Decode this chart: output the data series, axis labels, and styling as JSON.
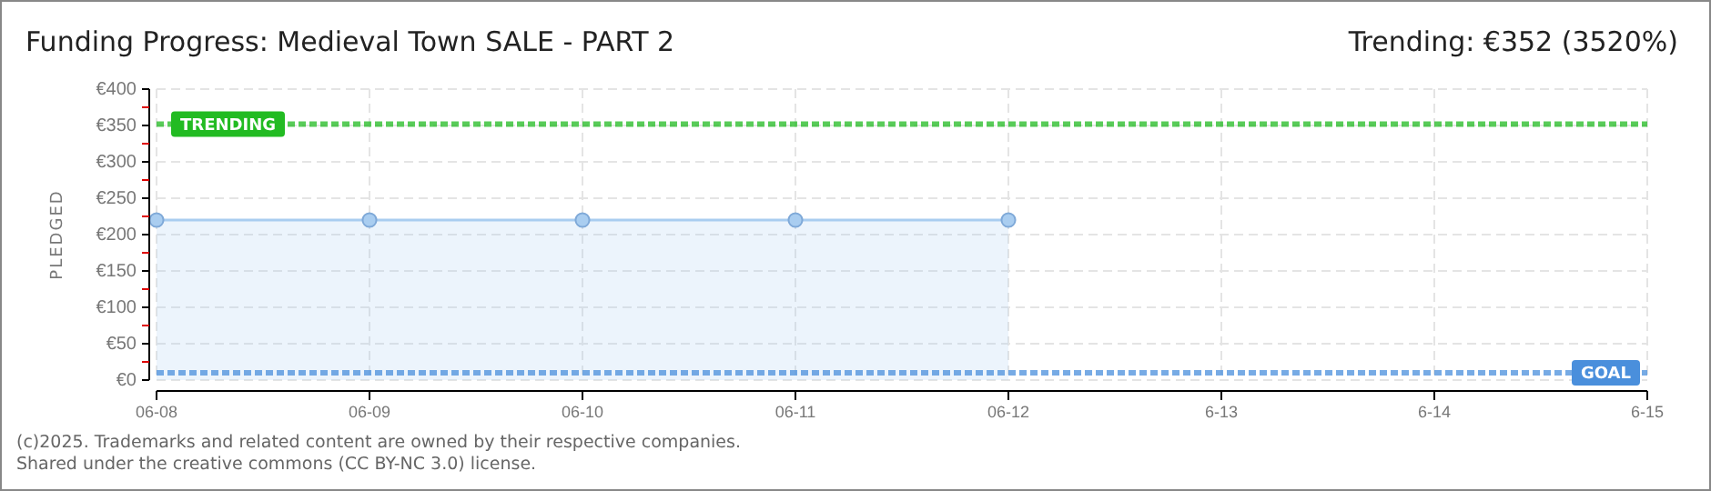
{
  "chart_data": {
    "type": "area",
    "title": "Funding Progress: Medieval Town SALE - PART 2",
    "subtitle": "Trending: €352 (3520%)",
    "ylabel": "PLEDGED",
    "categories": [
      "06-08",
      "06-09",
      "06-10",
      "06-11",
      "06-12",
      "6-13",
      "6-14",
      "6-15"
    ],
    "series": [
      {
        "color": "#a9cdf0",
        "values": [
          220,
          220,
          220,
          220,
          220,
          null,
          null,
          null
        ]
      }
    ],
    "ylim": [
      0,
      400
    ],
    "yticks": [
      {
        "value": 0,
        "label": "€0"
      },
      {
        "value": 25,
        "label": null
      },
      {
        "value": 50,
        "label": "€50"
      },
      {
        "value": 75,
        "label": null
      },
      {
        "value": 100,
        "label": "€100"
      },
      {
        "value": 125,
        "label": null
      },
      {
        "value": 150,
        "label": "€150"
      },
      {
        "value": 175,
        "label": null
      },
      {
        "value": 200,
        "label": "€200"
      },
      {
        "value": 225,
        "label": null
      },
      {
        "value": 250,
        "label": "€250"
      },
      {
        "value": 275,
        "label": null
      },
      {
        "value": 300,
        "label": "€300"
      },
      {
        "value": 325,
        "label": null
      },
      {
        "value": 350,
        "label": "€350"
      },
      {
        "value": 375,
        "label": null
      },
      {
        "value": 400,
        "label": "€400"
      }
    ],
    "grid": true,
    "marker": "circle",
    "ref_lines": [
      {
        "axis": "y",
        "value": 352,
        "label": "TRENDING",
        "color": "#22bb22",
        "line_style": "dashed"
      },
      {
        "axis": "y",
        "value": 10,
        "label": "GOAL",
        "color": "#4a8fdc",
        "line_style": "dashed"
      }
    ],
    "annotations": [
      "(c)2025. Trademarks and related content are owned by their respective companies.",
      "Shared under the creative commons (CC BY-NC 3.0) license."
    ]
  }
}
